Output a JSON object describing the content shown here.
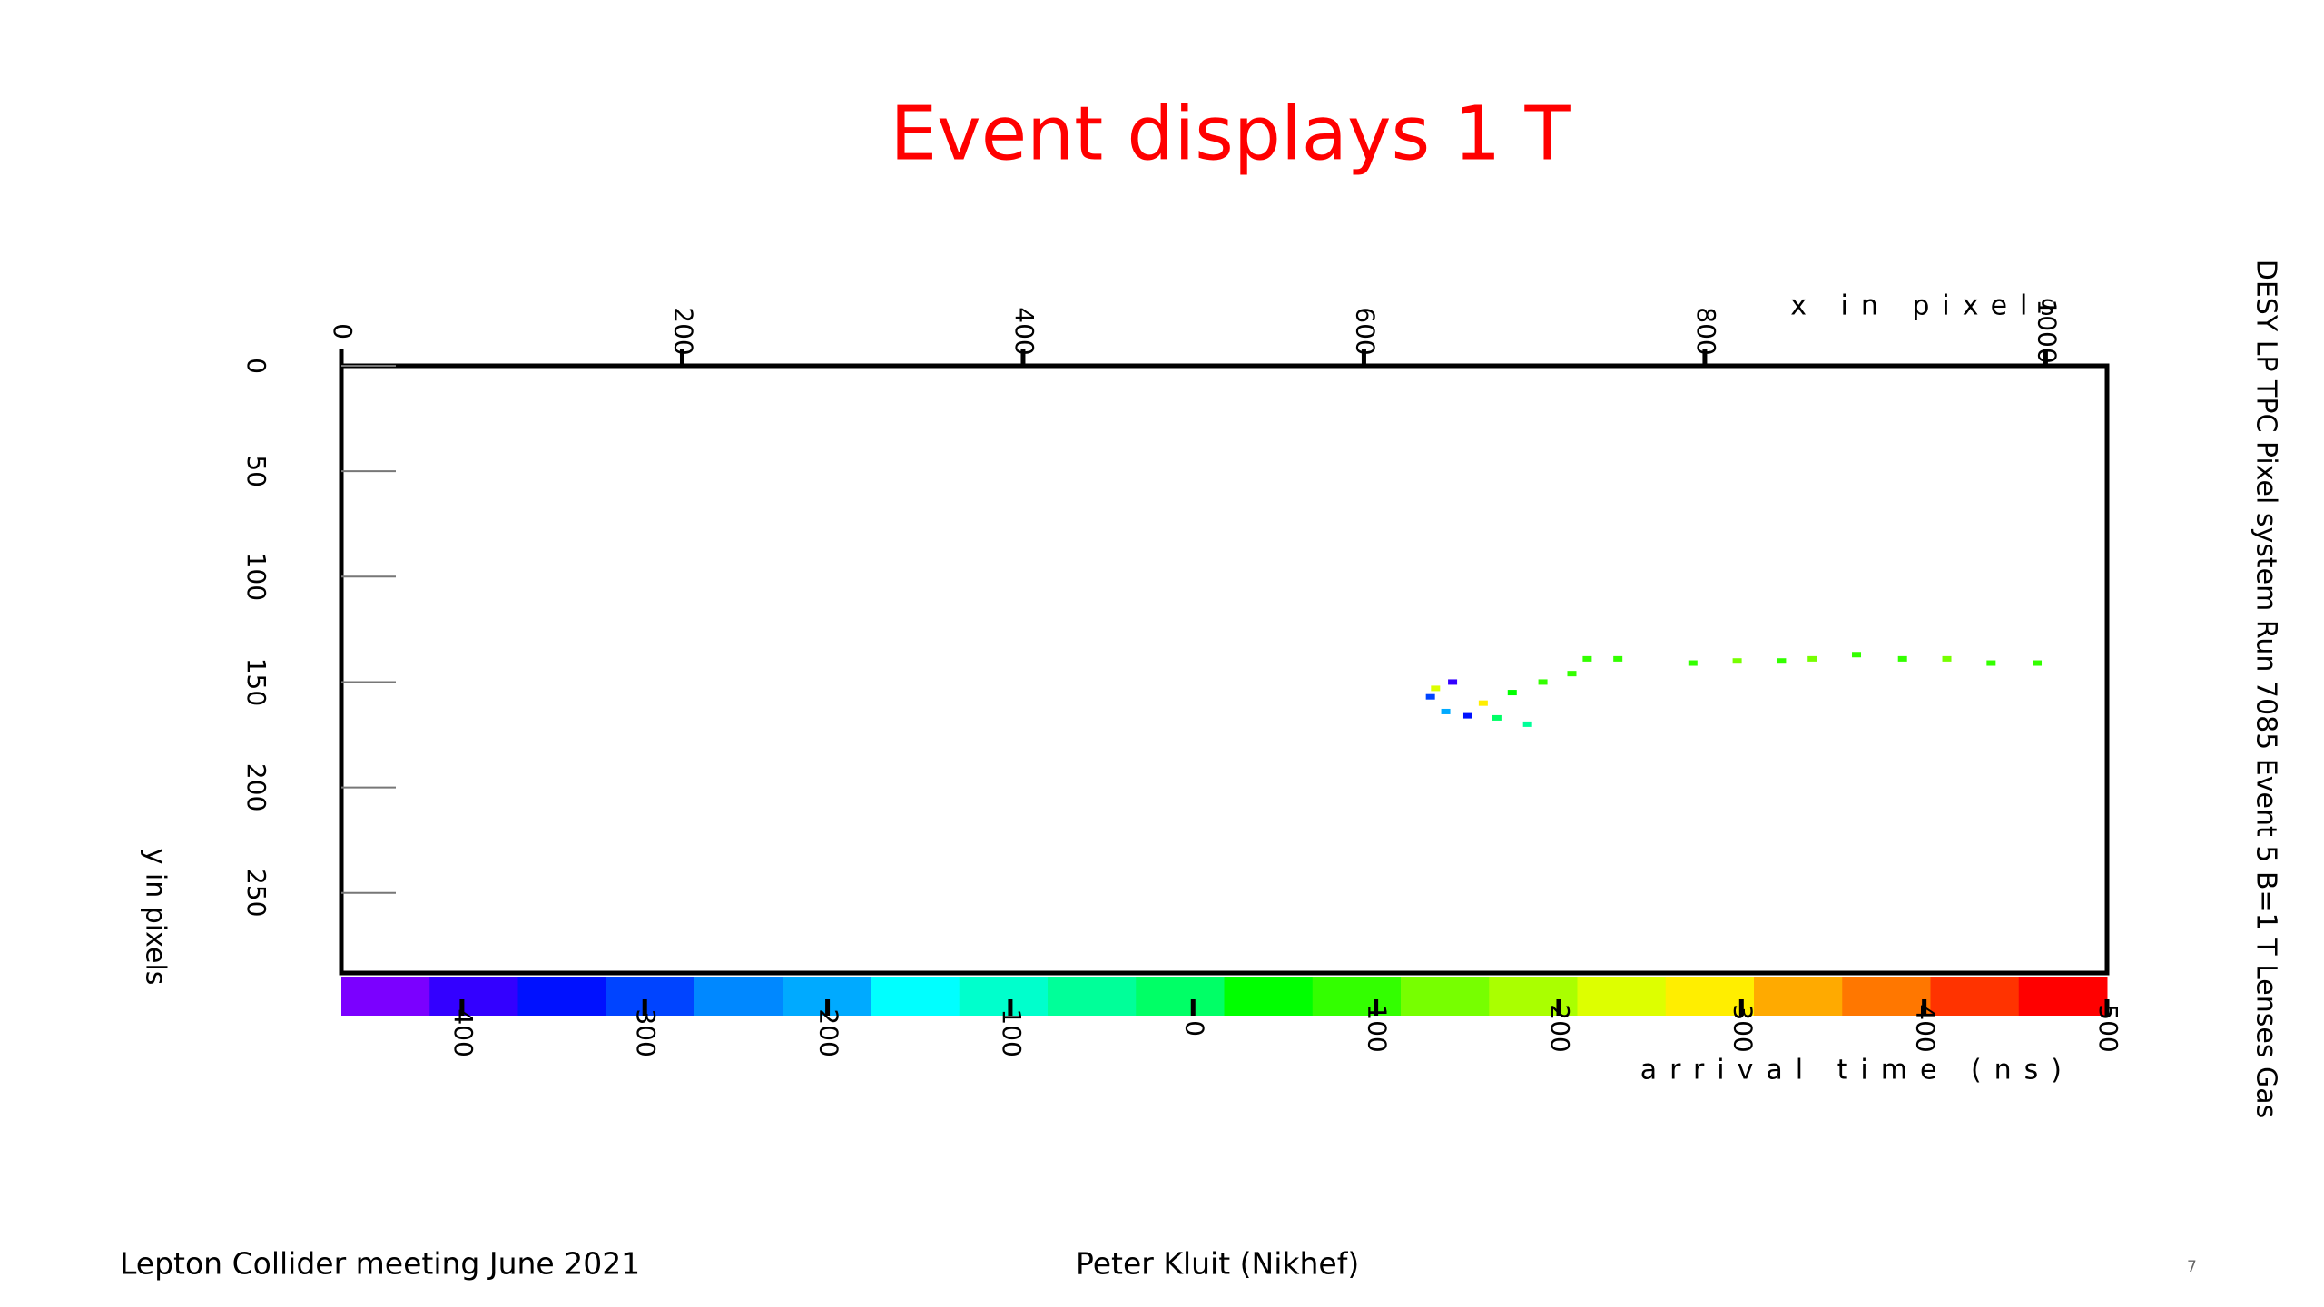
{
  "slide": {
    "footer_left": "Lepton Collider meeting June 2021",
    "footer_center": "Peter Kluit (Nikhef)",
    "page_number": "7"
  },
  "chart_data": {
    "type": "scatter",
    "title": "Event displays 1 T",
    "xlabel": "x in pixels",
    "ylabel": "y in pixels",
    "side_label": "DESY LP TPC Pixel system  Run 7085 Event 5  B=1 T  Lenses Gas",
    "xlim": [
      0,
      1036
    ],
    "xticks": [
      0,
      200,
      400,
      600,
      800,
      1000
    ],
    "ylim": [
      0,
      288
    ],
    "yticks": [
      0,
      50,
      100,
      150,
      200,
      250
    ],
    "colorbar": {
      "label": "arrival time (ns)",
      "zlim": [
        -466,
        500
      ],
      "ticks": [
        -400,
        -300,
        -200,
        -100,
        0,
        100,
        200,
        300,
        400,
        500
      ],
      "colors": [
        "#7b00ff",
        "#3300ff",
        "#0011ff",
        "#0044ff",
        "#0088ff",
        "#00aaff",
        "#00ffff",
        "#00ffcc",
        "#00ff99",
        "#00ff66",
        "#00ff00",
        "#33ff00",
        "#77ff00",
        "#aaff00",
        "#ddff00",
        "#ffee00",
        "#ffaa00",
        "#ff7700",
        "#ff3300",
        "#ff0000"
      ]
    },
    "x": [
      995,
      968,
      942,
      916,
      889,
      863,
      845,
      819,
      793,
      749,
      731,
      722,
      705,
      687,
      670,
      652,
      642,
      639,
      648,
      661,
      678,
      696
    ],
    "y": [
      141,
      141,
      139,
      139,
      137,
      139,
      140,
      140,
      141,
      139,
      139,
      146,
      150,
      155,
      160,
      150,
      153,
      157,
      164,
      166,
      167,
      170
    ],
    "z": [
      100,
      110,
      120,
      100,
      110,
      130,
      90,
      120,
      100,
      110,
      100,
      90,
      70,
      40,
      300,
      -400,
      250,
      -300,
      -200,
      -350,
      0,
      -50
    ]
  }
}
